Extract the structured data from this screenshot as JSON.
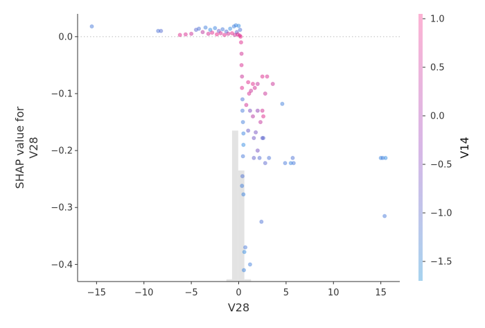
{
  "chart_data": {
    "type": "scatter",
    "xlabel": "V28",
    "ylabel_lines": [
      "SHAP value for",
      "V28"
    ],
    "xlim": [
      -17,
      17
    ],
    "ylim": [
      -0.43,
      0.04
    ],
    "xticks": [
      -15,
      -10,
      -5,
      0,
      5,
      10,
      15
    ],
    "xtick_labels": [
      "−15",
      "−10",
      "−5",
      "0",
      "5",
      "10",
      "15"
    ],
    "yticks": [
      0.0,
      -0.1,
      -0.2,
      -0.3,
      -0.4
    ],
    "ytick_labels": [
      "0.0",
      "−0.1",
      "−0.2",
      "−0.3",
      "−0.4"
    ],
    "reference_line_y": 0.0,
    "color_feature": "V14",
    "colorbar": {
      "label": "V14",
      "range": [
        -1.7,
        1.05
      ],
      "ticks": [
        1.0,
        0.5,
        0.0,
        -0.5,
        -1.0,
        -1.5
      ],
      "tick_labels": [
        "1.0",
        "0.5",
        "0.0",
        "−0.5",
        "−1.0",
        "−1.5"
      ],
      "color_low": "#a7d3ef",
      "color_mid": "#d8b7e6",
      "color_high": "#fcb3d4"
    },
    "histogram": {
      "color": "#e3e3e3",
      "bins": [
        {
          "x0": -1.3,
          "x1": -0.7,
          "height": 0.004
        },
        {
          "x0": -0.7,
          "x1": -0.05,
          "height": 0.265
        },
        {
          "x0": -0.05,
          "x1": 0.6,
          "height": 0.195
        },
        {
          "x0": 0.6,
          "x1": 1.3,
          "height": 0.004
        }
      ]
    },
    "points": [
      {
        "x": -15.5,
        "y": 0.018,
        "c": -1.3
      },
      {
        "x": -8.5,
        "y": 0.01,
        "c": -1.2
      },
      {
        "x": -8.2,
        "y": 0.01,
        "c": -1.1
      },
      {
        "x": -6.2,
        "y": 0.003,
        "c": 0.9
      },
      {
        "x": -5.6,
        "y": 0.004,
        "c": 0.8
      },
      {
        "x": -5.0,
        "y": 0.005,
        "c": 0.6
      },
      {
        "x": -4.5,
        "y": 0.012,
        "c": -1.0
      },
      {
        "x": -4.2,
        "y": 0.014,
        "c": -1.2
      },
      {
        "x": -3.8,
        "y": 0.008,
        "c": 0.4
      },
      {
        "x": -3.5,
        "y": 0.016,
        "c": -1.4
      },
      {
        "x": -3.2,
        "y": 0.005,
        "c": 0.7
      },
      {
        "x": -3.0,
        "y": 0.012,
        "c": -1.6
      },
      {
        "x": -2.8,
        "y": 0.007,
        "c": 0.9
      },
      {
        "x": -2.5,
        "y": 0.015,
        "c": -1.5
      },
      {
        "x": -2.3,
        "y": 0.004,
        "c": 1.0
      },
      {
        "x": -2.1,
        "y": 0.01,
        "c": -0.8
      },
      {
        "x": -1.9,
        "y": 0.006,
        "c": 0.8
      },
      {
        "x": -1.7,
        "y": 0.013,
        "c": -1.3
      },
      {
        "x": -1.5,
        "y": 0.003,
        "c": 0.9
      },
      {
        "x": -1.3,
        "y": 0.009,
        "c": -1.1
      },
      {
        "x": -1.1,
        "y": 0.005,
        "c": 0.7
      },
      {
        "x": -0.9,
        "y": 0.014,
        "c": -1.6
      },
      {
        "x": -0.7,
        "y": 0.006,
        "c": 1.0
      },
      {
        "x": -0.5,
        "y": 0.018,
        "c": -1.4
      },
      {
        "x": -0.4,
        "y": 0.003,
        "c": 0.6
      },
      {
        "x": -0.3,
        "y": 0.02,
        "c": -1.5
      },
      {
        "x": -0.2,
        "y": 0.008,
        "c": -0.9
      },
      {
        "x": -0.1,
        "y": 0.004,
        "c": 0.9
      },
      {
        "x": 0.0,
        "y": 0.019,
        "c": -1.6
      },
      {
        "x": 0.1,
        "y": 0.002,
        "c": 0.8
      },
      {
        "x": 0.15,
        "y": 0.012,
        "c": -1.2
      },
      {
        "x": 0.2,
        "y": 0.0,
        "c": 1.0
      },
      {
        "x": 0.25,
        "y": -0.01,
        "c": 0.9
      },
      {
        "x": 0.3,
        "y": -0.03,
        "c": 0.7
      },
      {
        "x": 0.3,
        "y": -0.05,
        "c": 0.8
      },
      {
        "x": 0.35,
        "y": -0.07,
        "c": 0.6
      },
      {
        "x": 0.35,
        "y": -0.09,
        "c": 0.9
      },
      {
        "x": 0.4,
        "y": -0.11,
        "c": -1.2
      },
      {
        "x": 0.4,
        "y": -0.13,
        "c": -1.3
      },
      {
        "x": 0.45,
        "y": -0.15,
        "c": -1.4
      },
      {
        "x": 0.5,
        "y": -0.17,
        "c": -1.5
      },
      {
        "x": 0.5,
        "y": -0.19,
        "c": -1.6
      },
      {
        "x": 0.45,
        "y": -0.21,
        "c": -1.3
      },
      {
        "x": 0.4,
        "y": -0.245,
        "c": -1.2
      },
      {
        "x": 0.35,
        "y": -0.262,
        "c": -1.4
      },
      {
        "x": 0.5,
        "y": -0.277,
        "c": -1.5
      },
      {
        "x": 0.7,
        "y": -0.37,
        "c": -1.3
      },
      {
        "x": 0.6,
        "y": -0.378,
        "c": -1.6
      },
      {
        "x": 0.55,
        "y": -0.41,
        "c": -1.5
      },
      {
        "x": 1.2,
        "y": -0.4,
        "c": -1.4
      },
      {
        "x": 0.8,
        "y": -0.12,
        "c": 0.7
      },
      {
        "x": 1.0,
        "y": -0.08,
        "c": 0.9
      },
      {
        "x": 1.1,
        "y": -0.1,
        "c": 0.8
      },
      {
        "x": 1.3,
        "y": -0.095,
        "c": 0.6
      },
      {
        "x": 1.5,
        "y": -0.083,
        "c": 0.9
      },
      {
        "x": 1.7,
        "y": -0.09,
        "c": 0.7
      },
      {
        "x": 2.0,
        "y": -0.083,
        "c": 0.5
      },
      {
        "x": 2.5,
        "y": -0.07,
        "c": 0.9
      },
      {
        "x": 2.8,
        "y": -0.1,
        "c": 0.6
      },
      {
        "x": 3.0,
        "y": -0.07,
        "c": 0.8
      },
      {
        "x": 3.6,
        "y": -0.083,
        "c": 0.6
      },
      {
        "x": 1.2,
        "y": -0.13,
        "c": -0.5
      },
      {
        "x": 1.5,
        "y": -0.14,
        "c": 0.3
      },
      {
        "x": 2.0,
        "y": -0.13,
        "c": -0.2
      },
      {
        "x": 2.3,
        "y": -0.15,
        "c": 0.5
      },
      {
        "x": 2.5,
        "y": -0.13,
        "c": 0.7
      },
      {
        "x": 2.6,
        "y": -0.14,
        "c": 0.9
      },
      {
        "x": 1.0,
        "y": -0.165,
        "c": -0.8
      },
      {
        "x": 1.8,
        "y": -0.168,
        "c": -0.6
      },
      {
        "x": 1.6,
        "y": -0.178,
        "c": -0.7
      },
      {
        "x": 2.5,
        "y": -0.178,
        "c": -0.9
      },
      {
        "x": 2.6,
        "y": -0.178,
        "c": -1.0
      },
      {
        "x": 2.0,
        "y": -0.2,
        "c": -0.6
      },
      {
        "x": 1.6,
        "y": -0.213,
        "c": -0.9
      },
      {
        "x": 2.2,
        "y": -0.213,
        "c": -1.1
      },
      {
        "x": 2.8,
        "y": -0.222,
        "c": -1.0
      },
      {
        "x": 3.2,
        "y": -0.213,
        "c": -1.2
      },
      {
        "x": 4.6,
        "y": -0.118,
        "c": -1.4
      },
      {
        "x": 4.9,
        "y": -0.222,
        "c": -1.3
      },
      {
        "x": 5.5,
        "y": -0.222,
        "c": -1.5
      },
      {
        "x": 5.7,
        "y": -0.213,
        "c": -1.2
      },
      {
        "x": 5.8,
        "y": -0.222,
        "c": -1.3
      },
      {
        "x": 2.4,
        "y": -0.325,
        "c": -1.2
      },
      {
        "x": 15.0,
        "y": -0.213,
        "c": -1.5
      },
      {
        "x": 15.2,
        "y": -0.213,
        "c": -1.4
      },
      {
        "x": 15.5,
        "y": -0.213,
        "c": -1.6
      },
      {
        "x": 15.4,
        "y": -0.315,
        "c": -1.3
      }
    ]
  }
}
